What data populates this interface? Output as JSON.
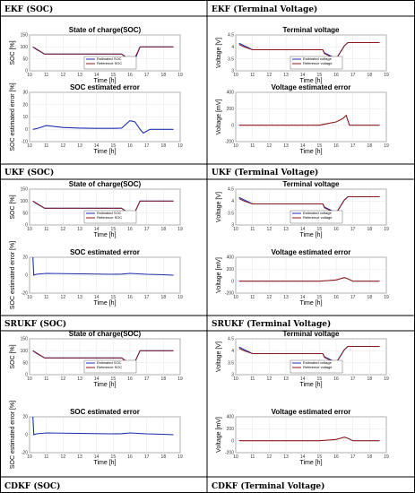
{
  "labels": {
    "cell_0_left": "EKF (SOC)",
    "cell_0_right": "EKF (Terminal Voltage)",
    "cell_1_left": "UKF (SOC)",
    "cell_1_right": "UKF (Terminal Voltage)",
    "cell_2_left": "SRUKF (SOC)",
    "cell_2_right": "SRUKF (Terminal Voltage)",
    "cell_3_left": "CDKF (SOC)",
    "cell_3_right": "CDKF (Terminal Voltage)"
  },
  "colors": {
    "estimated": "#1f2fb0",
    "reference": "#8b1a1a",
    "error_soc": "#1f2fb0",
    "error_v": "#8b1a1a",
    "noise": "#ff66cc",
    "grid": "#e6e6e6"
  },
  "chart_data": [
    {
      "id": "ekf-soc",
      "type": "line",
      "title": "State of charge(SOC)",
      "xlabel": "Time [h]",
      "ylabel": "SOC [%]",
      "xlim": [
        10,
        19
      ],
      "ylim": [
        0,
        150
      ],
      "xticks": [
        10,
        11,
        12,
        13,
        14,
        15,
        16,
        17,
        18,
        19
      ],
      "yticks": [
        0,
        50,
        100,
        150
      ],
      "grid": true,
      "legend_position": "bottom-center",
      "series": [
        {
          "name": "Estimated SOC",
          "x": [
            10.2,
            10.4,
            10.9,
            15.5,
            15.7,
            16.0,
            16.2,
            16.6,
            18.6
          ],
          "y": [
            100,
            90,
            70,
            70,
            60,
            45,
            30,
            100,
            100
          ]
        },
        {
          "name": "Reference SOC",
          "x": [
            10.2,
            10.4,
            10.9,
            15.5,
            15.7,
            16.0,
            16.2,
            16.6,
            18.6
          ],
          "y": [
            100,
            92,
            70,
            70,
            60,
            45,
            40,
            100,
            100
          ]
        }
      ]
    },
    {
      "id": "ekf-voltage",
      "type": "line",
      "title": "Terminal voltage",
      "xlabel": "Time [h]",
      "ylabel": "Voltage [V]",
      "xlim": [
        10,
        19
      ],
      "ylim": [
        3,
        4.5
      ],
      "xticks": [
        10,
        11,
        12,
        13,
        14,
        15,
        16,
        17,
        18,
        19
      ],
      "yticks": [
        3,
        3.5,
        4,
        4.5
      ],
      "grid": true,
      "legend_position": "bottom-center",
      "series": [
        {
          "name": "Estimated voltage",
          "x": [
            10.2,
            10.5,
            11,
            15.2,
            15.3,
            15.6,
            16.0,
            16.5,
            16.7,
            18.6
          ],
          "y": [
            4.15,
            4.05,
            3.88,
            3.88,
            3.75,
            3.65,
            3.5,
            4.05,
            4.18,
            4.18
          ]
        },
        {
          "name": "Reference voltage",
          "x": [
            10.2,
            10.5,
            11,
            15.2,
            15.3,
            15.6,
            16.0,
            16.5,
            16.7,
            18.6
          ],
          "y": [
            4.1,
            4.0,
            3.88,
            3.88,
            3.72,
            3.62,
            3.48,
            4.05,
            4.18,
            4.18
          ]
        }
      ]
    },
    {
      "id": "ekf-soc-error",
      "type": "line",
      "title": "SOC estimated error",
      "xlabel": "Time [h]",
      "ylabel": "SOC estimated error [%]",
      "xlim": [
        10,
        19
      ],
      "ylim": [
        -10,
        30
      ],
      "xticks": [
        10,
        11,
        12,
        13,
        14,
        15,
        16,
        17,
        18,
        19
      ],
      "yticks": [
        -10,
        0,
        10,
        20,
        30
      ],
      "grid": true,
      "series": [
        {
          "x": [
            10.2,
            10.4,
            11.0,
            12.0,
            13.0,
            14.0,
            15.0,
            15.5,
            16.0,
            16.3,
            16.6,
            16.8,
            17.2,
            18.6
          ],
          "y": [
            0,
            0.5,
            3,
            1.5,
            1,
            0.8,
            0.8,
            1,
            7,
            6,
            0,
            -3,
            0,
            0
          ]
        }
      ]
    },
    {
      "id": "ekf-voltage-error",
      "type": "line",
      "title": "Voltage estimated error",
      "xlabel": "Time [h]",
      "ylabel": "Voltage [mV]",
      "xlim": [
        10,
        19
      ],
      "ylim": [
        -200,
        400
      ],
      "xticks": [
        10,
        11,
        12,
        13,
        14,
        15,
        16,
        17,
        18,
        19
      ],
      "yticks": [
        -200,
        0,
        200,
        400
      ],
      "grid": true,
      "series": [
        {
          "x": [
            10.2,
            11.0,
            15.0,
            15.5,
            16.0,
            16.4,
            16.6,
            16.8,
            18.6
          ],
          "y": [
            0,
            0,
            0,
            20,
            40,
            80,
            120,
            0,
            0
          ]
        }
      ]
    },
    {
      "id": "ukf-soc",
      "type": "line",
      "title": "State of charge(SOC)",
      "xlabel": "Time [h]",
      "ylabel": "SOC [%]",
      "xlim": [
        10,
        19
      ],
      "ylim": [
        0,
        150
      ],
      "xticks": [
        10,
        11,
        12,
        13,
        14,
        15,
        16,
        17,
        18,
        19
      ],
      "yticks": [
        0,
        50,
        100,
        150
      ],
      "grid": true,
      "legend_position": "bottom-center",
      "series": [
        {
          "name": "Estimated SOC",
          "x": [
            10.2,
            10.4,
            10.9,
            15.5,
            15.7,
            16.0,
            16.2,
            16.6,
            18.6
          ],
          "y": [
            100,
            90,
            70,
            70,
            60,
            45,
            38,
            100,
            100
          ]
        },
        {
          "name": "Reference SOC",
          "x": [
            10.2,
            10.4,
            10.9,
            15.5,
            15.7,
            16.0,
            16.2,
            16.6,
            18.6
          ],
          "y": [
            100,
            92,
            70,
            70,
            60,
            45,
            40,
            100,
            100
          ]
        }
      ]
    },
    {
      "id": "ukf-voltage",
      "type": "line",
      "title": "Terminal voltage",
      "xlabel": "Time [h]",
      "ylabel": "Voltage [V]",
      "xlim": [
        10,
        19
      ],
      "ylim": [
        3,
        4.5
      ],
      "xticks": [
        10,
        11,
        12,
        13,
        14,
        15,
        16,
        17,
        18,
        19
      ],
      "yticks": [
        3,
        3.5,
        4,
        4.5
      ],
      "grid": true,
      "legend_position": "bottom-center",
      "series": [
        {
          "name": "Estimated voltage",
          "x": [
            10.2,
            10.5,
            11,
            15.2,
            15.3,
            15.6,
            16.0,
            16.5,
            16.7,
            18.6
          ],
          "y": [
            4.15,
            4.05,
            3.88,
            3.88,
            3.75,
            3.65,
            3.5,
            4.05,
            4.18,
            4.18
          ]
        },
        {
          "name": "Reference voltage",
          "x": [
            10.2,
            10.5,
            11,
            15.2,
            15.3,
            15.6,
            16.0,
            16.5,
            16.7,
            18.6
          ],
          "y": [
            4.1,
            4.0,
            3.88,
            3.88,
            3.72,
            3.62,
            3.48,
            4.05,
            4.18,
            4.18
          ]
        }
      ]
    },
    {
      "id": "ukf-soc-error",
      "type": "line",
      "title": "SOC estimated error",
      "xlabel": "Time [h]",
      "ylabel": "SOC estimated error [%]",
      "xlim": [
        10,
        19
      ],
      "ylim": [
        -20,
        20
      ],
      "xticks": [
        10,
        11,
        12,
        13,
        14,
        15,
        16,
        17,
        18,
        19
      ],
      "yticks": [
        -20,
        0,
        20
      ],
      "grid": true,
      "series": [
        {
          "x": [
            10.2,
            10.25,
            10.4,
            11.0,
            13.0,
            15.0,
            15.5,
            16.0,
            16.5,
            17.0,
            18.0,
            18.6
          ],
          "y": [
            20,
            0,
            1,
            2,
            1.5,
            1,
            1.2,
            2,
            1.5,
            1,
            0.5,
            0
          ]
        }
      ]
    },
    {
      "id": "ukf-voltage-error",
      "type": "line",
      "title": "Voltage estimated error",
      "xlabel": "Time [h]",
      "ylabel": "Voltage [mV]",
      "xlim": [
        10,
        19
      ],
      "ylim": [
        -200,
        400
      ],
      "xticks": [
        10,
        11,
        12,
        13,
        14,
        15,
        16,
        17,
        18,
        19
      ],
      "yticks": [
        -200,
        0,
        200,
        400
      ],
      "grid": true,
      "series": [
        {
          "x": [
            10.2,
            11.0,
            15.0,
            15.5,
            16.0,
            16.5,
            16.7,
            17.0,
            18.6
          ],
          "y": [
            0,
            0,
            0,
            10,
            20,
            60,
            40,
            0,
            0
          ]
        }
      ]
    },
    {
      "id": "srukf-soc",
      "type": "line",
      "title": "State of charge(SOC)",
      "xlabel": "Time [h]",
      "ylabel": "SOC [%]",
      "xlim": [
        10,
        19
      ],
      "ylim": [
        0,
        150
      ],
      "xticks": [
        10,
        11,
        12,
        13,
        14,
        15,
        16,
        17,
        18,
        19
      ],
      "yticks": [
        0,
        50,
        100,
        150
      ],
      "grid": true,
      "legend_position": "bottom-center",
      "series": [
        {
          "name": "Estimated SOC",
          "x": [
            10.2,
            10.4,
            10.9,
            15.5,
            15.7,
            16.0,
            16.2,
            16.6,
            18.6
          ],
          "y": [
            100,
            90,
            70,
            70,
            60,
            45,
            38,
            100,
            100
          ]
        },
        {
          "name": "Reference SOC",
          "x": [
            10.2,
            10.4,
            10.9,
            15.5,
            15.7,
            16.0,
            16.2,
            16.6,
            18.6
          ],
          "y": [
            100,
            92,
            70,
            70,
            60,
            45,
            40,
            100,
            100
          ]
        }
      ]
    },
    {
      "id": "srukf-voltage",
      "type": "line",
      "title": "Terminal voltage",
      "xlabel": "Time [h]",
      "ylabel": "Voltage [V]",
      "xlim": [
        10,
        19
      ],
      "ylim": [
        3,
        4.5
      ],
      "xticks": [
        10,
        11,
        12,
        13,
        14,
        15,
        16,
        17,
        18,
        19
      ],
      "yticks": [
        3,
        3.5,
        4,
        4.5
      ],
      "grid": true,
      "legend_position": "bottom-center",
      "series": [
        {
          "name": "Estimated voltage",
          "x": [
            10.2,
            10.5,
            11,
            15.2,
            15.3,
            15.6,
            16.0,
            16.5,
            16.7,
            18.6
          ],
          "y": [
            4.15,
            4.05,
            3.88,
            3.88,
            3.75,
            3.65,
            3.5,
            4.05,
            4.18,
            4.18
          ]
        },
        {
          "name": "Reference voltage",
          "x": [
            10.2,
            10.5,
            11,
            15.2,
            15.3,
            15.6,
            16.0,
            16.5,
            16.7,
            18.6
          ],
          "y": [
            4.1,
            4.0,
            3.88,
            3.88,
            3.72,
            3.62,
            3.48,
            4.05,
            4.18,
            4.18
          ]
        }
      ]
    },
    {
      "id": "srukf-soc-error",
      "type": "line",
      "title": "SOC estimated error",
      "xlabel": "Time [h]",
      "ylabel": "SOC estimated error [%]",
      "xlim": [
        10,
        19
      ],
      "ylim": [
        -20,
        20
      ],
      "xticks": [
        10,
        11,
        12,
        13,
        14,
        15,
        16,
        17,
        18,
        19
      ],
      "yticks": [
        -20,
        0,
        20
      ],
      "grid": true,
      "series": [
        {
          "x": [
            10.2,
            10.25,
            10.4,
            11.0,
            13.0,
            15.0,
            15.5,
            16.0,
            16.5,
            17.0,
            18.0,
            18.6
          ],
          "y": [
            20,
            0,
            1,
            2,
            1.5,
            1,
            1.2,
            2,
            1.5,
            1,
            0.5,
            0
          ]
        }
      ]
    },
    {
      "id": "srukf-voltage-error",
      "type": "line",
      "title": "Voltage estimated error",
      "xlabel": "Time [h]",
      "ylabel": "Voltage [mV]",
      "xlim": [
        10,
        19
      ],
      "ylim": [
        -200,
        400
      ],
      "xticks": [
        10,
        11,
        12,
        13,
        14,
        15,
        16,
        17,
        18,
        19
      ],
      "yticks": [
        -200,
        0,
        200,
        400
      ],
      "grid": true,
      "series": [
        {
          "x": [
            10.2,
            11.0,
            15.0,
            15.5,
            16.0,
            16.5,
            16.7,
            17.0,
            18.6
          ],
          "y": [
            0,
            0,
            0,
            10,
            20,
            60,
            40,
            0,
            0
          ]
        }
      ]
    }
  ]
}
